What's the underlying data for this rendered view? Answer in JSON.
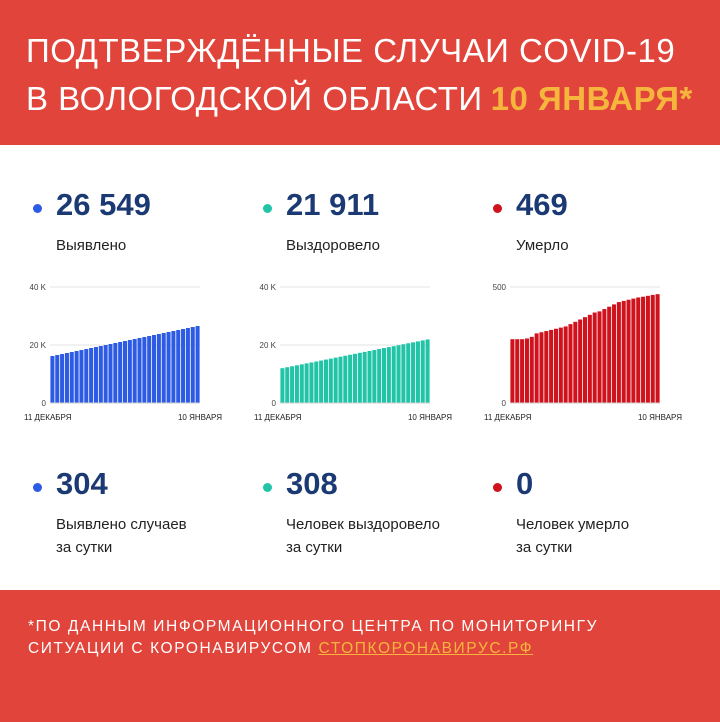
{
  "header": {
    "title_line1": "ПОДТВЕРЖДЁННЫЕ СЛУЧАИ COVID-19",
    "title_line2": "В ВОЛОГОДСКОЙ ОБЛАСТИ",
    "title_date": "10 ЯНВАРЯ*"
  },
  "colors": {
    "background": "#e1443a",
    "accent": "#f6b63e",
    "number": "#1b3a73",
    "detected": "#2d5be3",
    "recovered": "#22c4a7",
    "died": "#d0121c"
  },
  "totals": [
    {
      "value": "26 549",
      "label": "Выявлено"
    },
    {
      "value": "21 911",
      "label": "Выздоровело"
    },
    {
      "value": "469",
      "label": "Умерло"
    }
  ],
  "daily": [
    {
      "value": "304",
      "label_line1": "Выявлено случаев",
      "label_line2": "за сутки"
    },
    {
      "value": "308",
      "label_line1": "Человек выздоровело",
      "label_line2": "за сутки"
    },
    {
      "value": "0",
      "label_line1": "Человек умерло",
      "label_line2": "за сутки"
    }
  ],
  "chart_data": [
    {
      "type": "bar",
      "series_label": "Выявлено",
      "ylim": [
        0,
        40000
      ],
      "yticks": [
        "0",
        "20 K",
        "40 K"
      ],
      "ytick_values": [
        0,
        20000,
        40000
      ],
      "xticks": [
        "11 ДЕКАБРЯ",
        "10 ЯНВАРЯ"
      ],
      "start": 16200,
      "end": 26549,
      "n": 31,
      "color": "#2d5be3"
    },
    {
      "type": "bar",
      "series_label": "Выздоровело",
      "ylim": [
        0,
        40000
      ],
      "yticks": [
        "0",
        "20 K",
        "40 K"
      ],
      "ytick_values": [
        0,
        20000,
        40000
      ],
      "xticks": [
        "11 ДЕКАБРЯ",
        "10 ЯНВАРЯ"
      ],
      "start": 12000,
      "end": 21911,
      "n": 31,
      "color": "#22c4a7"
    },
    {
      "type": "bar",
      "series_label": "Умерло",
      "ylim": [
        0,
        500
      ],
      "yticks": [
        "0",
        "500"
      ],
      "ytick_values": [
        0,
        500
      ],
      "xticks": [
        "11 ДЕКАБРЯ",
        "10 ЯНВАРЯ"
      ],
      "values": [
        275,
        275,
        275,
        278,
        285,
        300,
        305,
        310,
        315,
        320,
        325,
        330,
        340,
        350,
        360,
        370,
        380,
        390,
        395,
        405,
        415,
        425,
        435,
        440,
        445,
        450,
        455,
        458,
        462,
        466,
        469
      ],
      "color": "#d0121c"
    }
  ],
  "footer": {
    "line1": "*ПО ДАННЫМ ИНФОРМАЦИОННОГО ЦЕНТРА ПО МОНИТОРИНГУ",
    "line2": "СИТУАЦИИ С КОРОНАВИРУСОМ",
    "link": "СТОПКОРОНАВИРУС.РФ"
  }
}
